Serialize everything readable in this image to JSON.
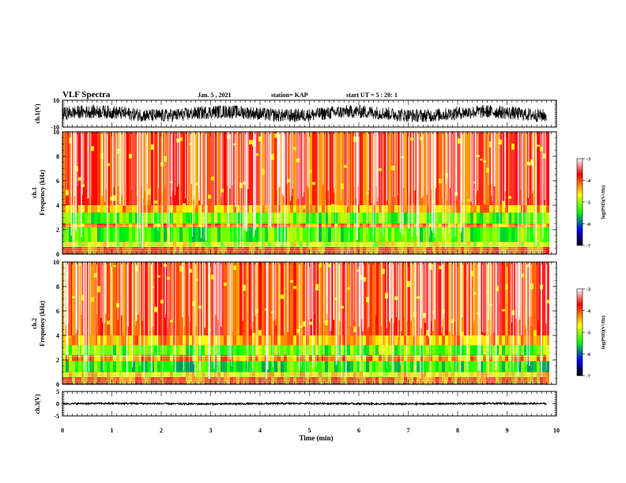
{
  "header": {
    "title": "VLF Spectra",
    "date": "Jan. 5 , 2021",
    "station": "station= KAP",
    "start": "start  UT =   5 : 20: 1"
  },
  "colorbar": {
    "label": "log(PSD)(V²/Hz)",
    "ticks": [
      "-3",
      "-4",
      "-5",
      "-6",
      "-7"
    ],
    "colors": [
      "#ffffff",
      "#ff0000",
      "#ffff00",
      "#00ff00",
      "#0000ff",
      "#000000"
    ]
  },
  "chart_data": [
    {
      "type": "line",
      "name": "waveform-ch1",
      "ylabel": "ch.1(V)",
      "ylim": [
        -10,
        10
      ],
      "ytick_labels": [
        "10",
        "-10"
      ],
      "xlim": [
        0,
        10
      ],
      "x_end": 9.8,
      "mean": 0,
      "amplitude": 5
    },
    {
      "type": "heatmap",
      "name": "spectrogram-ch1",
      "ylabel": "ch.1",
      "ylabel2": "Frequency (kHz)",
      "ylim": [
        0,
        10
      ],
      "ytick_labels": [
        "0",
        "2",
        "4",
        "6",
        "8",
        "10"
      ],
      "xlim": [
        0,
        10
      ],
      "x_end": 9.8,
      "zlim": [
        -7,
        -3
      ],
      "bands": [
        {
          "f": [
            0.0,
            0.6
          ],
          "level": -4.0
        },
        {
          "f": [
            0.6,
            1.0
          ],
          "level": -4.8
        },
        {
          "f": [
            1.0,
            2.2
          ],
          "level": -5.3
        },
        {
          "f": [
            2.2,
            2.5
          ],
          "level": -4.2
        },
        {
          "f": [
            2.5,
            3.4
          ],
          "level": -5.2
        },
        {
          "f": [
            3.4,
            4.0
          ],
          "level": -4.4
        },
        {
          "f": [
            4.0,
            10.0
          ],
          "level": -3.9
        }
      ]
    },
    {
      "type": "heatmap",
      "name": "spectrogram-ch2",
      "ylabel": "ch.2",
      "ylabel2": "Frequency (kHz)",
      "ylim": [
        0,
        10
      ],
      "ytick_labels": [
        "0",
        "2",
        "4",
        "6",
        "8",
        "10"
      ],
      "xlim": [
        0,
        10
      ],
      "x_end": 9.8,
      "zlim": [
        -7,
        -3
      ],
      "bands": [
        {
          "f": [
            0.0,
            0.6
          ],
          "level": -4.0
        },
        {
          "f": [
            0.6,
            1.0
          ],
          "level": -4.6
        },
        {
          "f": [
            1.0,
            1.9
          ],
          "level": -5.4
        },
        {
          "f": [
            1.9,
            2.4
          ],
          "level": -4.3
        },
        {
          "f": [
            2.4,
            3.2
          ],
          "level": -5.2
        },
        {
          "f": [
            3.2,
            4.0
          ],
          "level": -4.4
        },
        {
          "f": [
            4.0,
            10.0
          ],
          "level": -3.9
        }
      ]
    },
    {
      "type": "line",
      "name": "waveform-ch3",
      "ylabel": "ch.3(V)",
      "ylim": [
        -5,
        5
      ],
      "ytick_labels": [
        "5",
        "0",
        "-5"
      ],
      "xlim": [
        0,
        10
      ],
      "x_end": 9.8,
      "mean": 0,
      "amplitude": 0.3
    }
  ],
  "xaxis": {
    "label": "Time (min)",
    "ticks": [
      "0",
      "1",
      "2",
      "3",
      "4",
      "5",
      "6",
      "7",
      "8",
      "9",
      "10"
    ]
  }
}
